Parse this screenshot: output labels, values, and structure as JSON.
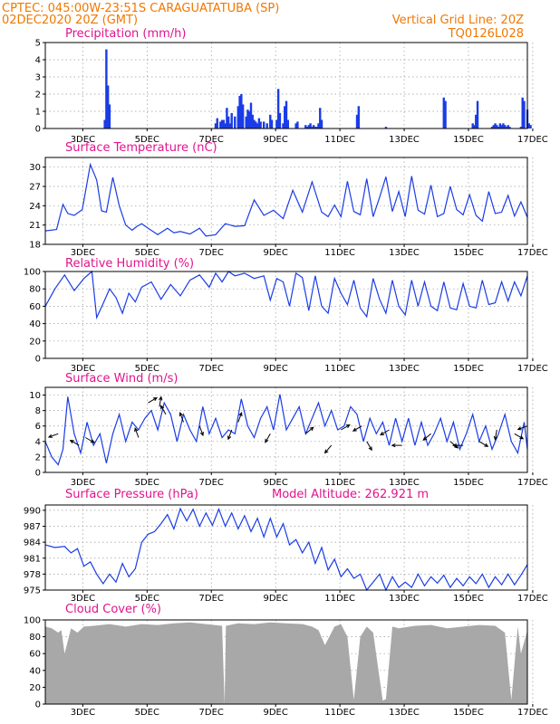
{
  "header": {
    "line1": "CPTEC:   045:00W-23:51S   CARAGUATATUBA (SP)",
    "line2_left": "02DEC2020 20Z (GMT)",
    "line2_right": "Vertical Grid Line: 20Z",
    "line3_right": "TQ0126L028"
  },
  "x_tick_labels": [
    "3DEC",
    "5DEC",
    "7DEC",
    "9DEC",
    "11DEC",
    "13DEC",
    "15DEC",
    "17DEC"
  ],
  "colors": {
    "header": "#f07800",
    "title": "#e0148c",
    "series": "#1a3ce6",
    "cloud": "#a8a8a8"
  },
  "chart_data": [
    {
      "type": "bar",
      "title": "Precipitation (mm/h)",
      "x_unit": "days since 02DEC2020 20Z",
      "ylim": [
        0,
        5
      ],
      "yticks": [
        0,
        1,
        2,
        3,
        4,
        5
      ],
      "grid": true,
      "x": [
        1.85,
        1.9,
        1.95,
        2.0,
        5.3,
        5.35,
        5.45,
        5.5,
        5.55,
        5.6,
        5.65,
        5.7,
        5.75,
        5.8,
        5.9,
        6.0,
        6.05,
        6.1,
        6.15,
        6.25,
        6.3,
        6.35,
        6.4,
        6.45,
        6.5,
        6.55,
        6.6,
        6.65,
        6.7,
        6.8,
        6.9,
        7.0,
        7.05,
        7.2,
        7.25,
        7.3,
        7.4,
        7.45,
        7.5,
        7.55,
        7.8,
        7.85,
        8.1,
        8.15,
        8.2,
        8.25,
        8.3,
        8.35,
        8.4,
        8.45,
        8.5,
        8.55,
        8.6,
        9.7,
        9.75,
        10.6,
        12.4,
        12.45,
        13.3,
        13.35,
        13.4,
        13.45,
        13.9,
        13.95,
        14.0,
        14.05,
        14.1,
        14.15,
        14.2,
        14.25,
        14.3,
        14.35,
        14.4,
        14.45,
        14.8,
        14.85,
        14.9,
        15.0,
        15.05,
        15.1
      ],
      "values": [
        0.5,
        4.6,
        2.5,
        1.4,
        0.3,
        0.6,
        0.4,
        0.5,
        0.5,
        0.3,
        1.2,
        0.7,
        0.3,
        0.9,
        0.7,
        1.3,
        1.9,
        2.0,
        1.4,
        0.7,
        1.1,
        1.0,
        1.5,
        0.8,
        0.5,
        0.4,
        0.3,
        0.6,
        0.4,
        0.4,
        0.3,
        0.8,
        0.5,
        0.5,
        2.3,
        0.9,
        0.3,
        1.3,
        1.6,
        0.5,
        0.3,
        0.4,
        0.2,
        0.1,
        0.2,
        0.3,
        0.1,
        0.2,
        0.1,
        0.1,
        0.3,
        1.2,
        0.5,
        0.8,
        1.3,
        0.1,
        1.8,
        1.6,
        0.3,
        0.2,
        0.8,
        1.6,
        0.1,
        0.2,
        0.3,
        0.2,
        0.1,
        0.3,
        0.2,
        0.3,
        0.2,
        0.1,
        0.2,
        0.1,
        0.1,
        1.8,
        1.6,
        1.1,
        0.3,
        0.2
      ]
    },
    {
      "type": "line",
      "title": "Surface Temperature (nC)",
      "x_unit": "days since 02DEC2020 20Z",
      "ylim": [
        18,
        31.5
      ],
      "yticks": [
        18,
        21,
        24,
        27,
        30
      ],
      "grid": true,
      "x": [
        0,
        0.35,
        0.55,
        0.7,
        0.9,
        1.15,
        1.4,
        1.6,
        1.75,
        1.9,
        2.1,
        2.3,
        2.5,
        2.7,
        2.85,
        3.0,
        3.2,
        3.5,
        3.8,
        4.0,
        4.2,
        4.5,
        4.8,
        5.0,
        5.3,
        5.6,
        5.9,
        6.2,
        6.5,
        6.8,
        7.1,
        7.4,
        7.7,
        8.0,
        8.3,
        8.6,
        8.8,
        9.0,
        9.2,
        9.4,
        9.6,
        9.8,
        10.0,
        10.2,
        10.4,
        10.6,
        10.8,
        11.0,
        11.2,
        11.4,
        11.6,
        11.8,
        12.0,
        12.2,
        12.4,
        12.6,
        12.8,
        13.0,
        13.2,
        13.4,
        13.6,
        13.8,
        14.0,
        14.2,
        14.4,
        14.6,
        14.8,
        15.0
      ],
      "values": [
        20.1,
        20.3,
        24.2,
        22.8,
        22.5,
        23.4,
        30.4,
        28.0,
        23.2,
        23.0,
        28.4,
        24.0,
        21.0,
        20.2,
        20.8,
        21.2,
        20.5,
        19.5,
        20.5,
        19.8,
        20.0,
        19.6,
        20.5,
        19.3,
        19.5,
        21.2,
        20.8,
        20.9,
        24.9,
        22.5,
        23.3,
        22.0,
        26.4,
        23.0,
        27.7,
        23.0,
        22.3,
        24.1,
        22.3,
        27.8,
        23.1,
        22.6,
        28.2,
        22.3,
        25.3,
        28.5,
        23.1,
        26.2,
        22.3,
        28.6,
        23.3,
        22.7,
        27.2,
        22.3,
        22.8,
        27.0,
        23.4,
        22.6,
        25.7,
        22.5,
        21.6,
        26.2,
        22.8,
        23.0,
        25.6,
        22.4,
        24.6,
        22.2
      ]
    },
    {
      "type": "line",
      "title": "Relative Humidity (%)",
      "x_unit": "days since 02DEC2020 20Z",
      "ylim": [
        0,
        100
      ],
      "yticks": [
        0,
        20,
        40,
        60,
        80,
        100
      ],
      "grid": true,
      "x": [
        0,
        0.3,
        0.6,
        0.9,
        1.2,
        1.45,
        1.6,
        1.8,
        2.0,
        2.2,
        2.4,
        2.6,
        2.8,
        3.0,
        3.3,
        3.6,
        3.9,
        4.2,
        4.5,
        4.8,
        5.1,
        5.3,
        5.5,
        5.7,
        5.9,
        6.2,
        6.5,
        6.8,
        7.0,
        7.2,
        7.4,
        7.6,
        7.8,
        8.0,
        8.2,
        8.4,
        8.6,
        8.8,
        9.0,
        9.2,
        9.4,
        9.6,
        9.8,
        10.0,
        10.2,
        10.4,
        10.6,
        10.8,
        11.0,
        11.2,
        11.4,
        11.6,
        11.8,
        12.0,
        12.2,
        12.4,
        12.6,
        12.8,
        13.0,
        13.2,
        13.4,
        13.6,
        13.8,
        14.0,
        14.2,
        14.4,
        14.6,
        14.8,
        15.0
      ],
      "values": [
        60,
        80,
        96,
        78,
        92,
        100,
        47,
        63,
        80,
        70,
        52,
        75,
        65,
        82,
        88,
        68,
        85,
        72,
        90,
        96,
        82,
        98,
        88,
        100,
        95,
        98,
        92,
        95,
        67,
        92,
        88,
        60,
        98,
        93,
        55,
        95,
        60,
        52,
        92,
        75,
        62,
        90,
        58,
        48,
        92,
        68,
        52,
        90,
        60,
        50,
        90,
        60,
        88,
        60,
        55,
        88,
        58,
        56,
        86,
        60,
        58,
        90,
        62,
        64,
        88,
        66,
        88,
        72,
        95
      ]
    },
    {
      "type": "line",
      "title": "Surface Wind (m/s)",
      "x_unit": "days since 02DEC2020 20Z",
      "ylim": [
        0,
        11
      ],
      "yticks": [
        0,
        2,
        4,
        6,
        8,
        10
      ],
      "grid": true,
      "x": [
        0,
        0.2,
        0.4,
        0.55,
        0.7,
        0.9,
        1.1,
        1.3,
        1.5,
        1.7,
        1.9,
        2.1,
        2.3,
        2.5,
        2.7,
        2.9,
        3.1,
        3.3,
        3.5,
        3.7,
        3.9,
        4.1,
        4.3,
        4.5,
        4.7,
        4.9,
        5.1,
        5.3,
        5.5,
        5.7,
        5.9,
        6.1,
        6.3,
        6.5,
        6.7,
        6.9,
        7.1,
        7.3,
        7.5,
        7.7,
        7.9,
        8.1,
        8.3,
        8.5,
        8.7,
        8.9,
        9.1,
        9.3,
        9.5,
        9.7,
        9.9,
        10.1,
        10.3,
        10.5,
        10.7,
        10.9,
        11.1,
        11.3,
        11.5,
        11.7,
        11.9,
        12.1,
        12.3,
        12.5,
        12.7,
        12.9,
        13.1,
        13.3,
        13.5,
        13.7,
        13.9,
        14.1,
        14.3,
        14.5,
        14.7,
        14.9,
        15.0
      ],
      "values": [
        4,
        2,
        1,
        3,
        9.8,
        5,
        2.5,
        6.5,
        3.5,
        5,
        1.2,
        5,
        7.5,
        4,
        6.5,
        5.5,
        7,
        8,
        5.5,
        9,
        7.5,
        4,
        7.5,
        5.5,
        4,
        8.5,
        5,
        7,
        4.5,
        5.5,
        5,
        9.5,
        6,
        4.5,
        7,
        8.5,
        5.5,
        10.1,
        5.5,
        7,
        8.5,
        5,
        7,
        9,
        6,
        8,
        5.5,
        6,
        8.5,
        7.5,
        4,
        7,
        5,
        6.5,
        3.5,
        7,
        4,
        7,
        3.5,
        6.5,
        3.5,
        5,
        7,
        4,
        6.5,
        3,
        5,
        7.5,
        4,
        6,
        3,
        5,
        7.5,
        4,
        2.5,
        6.5,
        3
      ]
    },
    {
      "type": "line",
      "title": "Surface Pressure (hPa)",
      "annotation": "Model Altitude: 262.921 m",
      "x_unit": "days since 02DEC2020 20Z",
      "ylim": [
        975,
        991
      ],
      "yticks": [
        975,
        978,
        981,
        984,
        987,
        990
      ],
      "grid": true,
      "x": [
        0,
        0.3,
        0.6,
        0.8,
        1.0,
        1.2,
        1.4,
        1.6,
        1.8,
        2.0,
        2.2,
        2.4,
        2.6,
        2.8,
        3.0,
        3.2,
        3.4,
        3.6,
        3.8,
        4.0,
        4.2,
        4.4,
        4.6,
        4.8,
        5.0,
        5.2,
        5.4,
        5.6,
        5.8,
        6.0,
        6.2,
        6.4,
        6.6,
        6.8,
        7.0,
        7.2,
        7.4,
        7.6,
        7.8,
        8.0,
        8.2,
        8.4,
        8.6,
        8.8,
        9.0,
        9.2,
        9.4,
        9.6,
        9.8,
        10.0,
        10.2,
        10.4,
        10.6,
        10.8,
        11.0,
        11.2,
        11.4,
        11.6,
        11.8,
        12.0,
        12.2,
        12.4,
        12.6,
        12.8,
        13.0,
        13.2,
        13.4,
        13.6,
        13.8,
        14.0,
        14.2,
        14.4,
        14.6,
        14.8,
        15.0
      ],
      "values": [
        983.5,
        983.0,
        983.2,
        982.0,
        982.8,
        979.5,
        980.3,
        978.0,
        976.2,
        978.0,
        976.5,
        980.0,
        977.5,
        979.0,
        984.0,
        985.5,
        986.0,
        987.5,
        989.2,
        986.5,
        990.3,
        988.0,
        990.2,
        987.0,
        989.5,
        987.2,
        990.2,
        987.0,
        989.5,
        986.5,
        989.0,
        986.0,
        988.5,
        985.0,
        988.5,
        985.0,
        987.5,
        983.5,
        984.5,
        982.0,
        984.0,
        980.0,
        983.0,
        978.8,
        980.8,
        977.5,
        979.0,
        977.2,
        978.0,
        975.0,
        976.5,
        978.0,
        975.0,
        977.5,
        975.5,
        976.5,
        975.5,
        978.0,
        975.8,
        977.5,
        976.3,
        977.8,
        975.5,
        977.2,
        975.8,
        977.5,
        976.2,
        978.0,
        975.5,
        977.5,
        976.0,
        978.0,
        976.0,
        977.8,
        979.8
      ]
    },
    {
      "type": "area",
      "title": "Cloud Cover (%)",
      "x_unit": "days since 02DEC2020 20Z",
      "ylim": [
        0,
        100
      ],
      "yticks": [
        0,
        20,
        40,
        60,
        80,
        100
      ],
      "grid": true,
      "x": [
        0,
        0.2,
        0.4,
        0.5,
        0.6,
        0.8,
        1.0,
        1.2,
        1.5,
        2.0,
        2.5,
        3.0,
        3.5,
        4.0,
        4.5,
        5.0,
        5.5,
        5.58,
        5.62,
        6.0,
        6.5,
        7.0,
        7.5,
        8.0,
        8.3,
        8.5,
        8.7,
        9.0,
        9.2,
        9.4,
        9.6,
        9.8,
        10.0,
        10.2,
        10.5,
        10.6,
        10.8,
        11.0,
        11.5,
        12.0,
        12.5,
        13.0,
        13.5,
        14.0,
        14.3,
        14.5,
        14.7,
        14.8,
        15.0
      ],
      "values": [
        92,
        90,
        85,
        88,
        60,
        90,
        85,
        92,
        93,
        95,
        92,
        95,
        94,
        96,
        97,
        95,
        93,
        0,
        93,
        96,
        95,
        97,
        96,
        95,
        92,
        88,
        70,
        92,
        95,
        80,
        5,
        80,
        92,
        85,
        4,
        6,
        92,
        90,
        93,
        94,
        90,
        92,
        94,
        93,
        85,
        5,
        92,
        60,
        88
      ]
    }
  ],
  "wind_barbs": [
    {
      "x": 0.4,
      "v": 5.0,
      "dir": 200
    },
    {
      "x": 1.05,
      "v": 3.5,
      "dir": 150
    },
    {
      "x": 1.25,
      "v": 4.5,
      "dir": 330
    },
    {
      "x": 2.9,
      "v": 4.5,
      "dir": 110
    },
    {
      "x": 3.2,
      "v": 9.0,
      "dir": 30
    },
    {
      "x": 3.55,
      "v": 8.5,
      "dir": 80
    },
    {
      "x": 3.75,
      "v": 7.5,
      "dir": 120
    },
    {
      "x": 4.3,
      "v": 6.5,
      "dir": 110
    },
    {
      "x": 4.8,
      "v": 6.0,
      "dir": 290
    },
    {
      "x": 5.8,
      "v": 5.5,
      "dir": 250
    },
    {
      "x": 6.0,
      "v": 6.5,
      "dir": 70
    },
    {
      "x": 7.0,
      "v": 5.0,
      "dir": 240
    },
    {
      "x": 8.1,
      "v": 5.0,
      "dir": 40
    },
    {
      "x": 8.9,
      "v": 3.5,
      "dir": 230
    },
    {
      "x": 9.2,
      "v": 5.5,
      "dir": 30
    },
    {
      "x": 9.85,
      "v": 6.0,
      "dir": 210
    },
    {
      "x": 10.0,
      "v": 4.0,
      "dir": 300
    },
    {
      "x": 10.7,
      "v": 5.5,
      "dir": 210
    },
    {
      "x": 11.1,
      "v": 3.5,
      "dir": 180
    },
    {
      "x": 12.0,
      "v": 5.0,
      "dir": 220
    },
    {
      "x": 12.6,
      "v": 4.0,
      "dir": 320
    },
    {
      "x": 13.0,
      "v": 3.5,
      "dir": 180
    },
    {
      "x": 13.5,
      "v": 4.0,
      "dir": 330
    },
    {
      "x": 14.05,
      "v": 5.5,
      "dir": 260
    },
    {
      "x": 14.6,
      "v": 5.0,
      "dir": 330
    },
    {
      "x": 15.0,
      "v": 6.0,
      "dir": 200
    }
  ]
}
